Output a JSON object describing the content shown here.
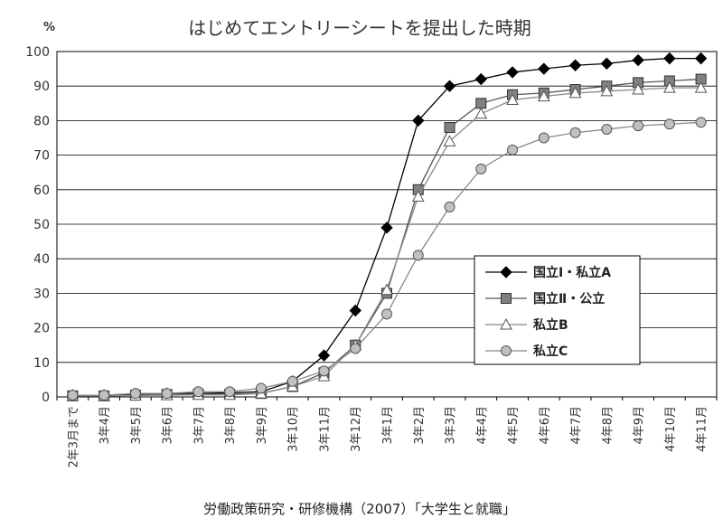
{
  "chart_data": {
    "type": "line",
    "title": "はじめてエントリーシートを提出した時期",
    "ylabel": "%",
    "ylim": [
      0,
      100
    ],
    "yticks": [
      0,
      10,
      20,
      30,
      40,
      50,
      60,
      70,
      80,
      90,
      100
    ],
    "grid": "horizontal",
    "legend_position": "lower-right",
    "categories": [
      "2年3月まで",
      "3年4月",
      "3年5月",
      "3年6月",
      "3年7月",
      "3年8月",
      "3年9月",
      "3年10月",
      "3年11月",
      "3年12月",
      "3年1月",
      "3年2月",
      "3年3月",
      "4年4月",
      "4年5月",
      "4年6月",
      "4年7月",
      "4年8月",
      "4年9月",
      "4年10月",
      "4年11月"
    ],
    "series": [
      {
        "name": "国立Ⅰ・私立A",
        "marker": "diamond",
        "color": "#000000",
        "values": [
          0.5,
          0.5,
          0.8,
          1,
          1,
          1.2,
          1.5,
          4.5,
          12,
          25,
          49,
          80,
          90,
          92,
          94,
          95,
          96,
          96.5,
          97.5,
          98,
          98
        ]
      },
      {
        "name": "国立Ⅱ・公立",
        "marker": "square",
        "color": "#555555",
        "values": [
          0.3,
          0.3,
          0.5,
          0.7,
          0.8,
          0.8,
          1,
          3,
          7,
          15,
          30,
          60,
          78,
          85,
          87.5,
          88,
          89,
          90,
          91,
          91.5,
          92
        ]
      },
      {
        "name": "私立B",
        "marker": "triangle",
        "color": "#888888",
        "values": [
          0.3,
          0.3,
          0.4,
          0.5,
          0.6,
          0.6,
          1,
          3,
          6,
          15,
          31,
          58,
          74,
          82,
          86,
          87,
          88,
          88.5,
          89,
          89.5,
          89.5
        ]
      },
      {
        "name": "私立C",
        "marker": "circle",
        "color": "#888888",
        "values": [
          0.5,
          0.5,
          1,
          1,
          1.5,
          1.5,
          2.5,
          4.5,
          7.5,
          14,
          24,
          41,
          55,
          66,
          71.5,
          75,
          76.5,
          77.5,
          78.5,
          79,
          79.5
        ]
      }
    ],
    "source": "労働政策研究・研修機構（2007）「大学生と就職」"
  }
}
